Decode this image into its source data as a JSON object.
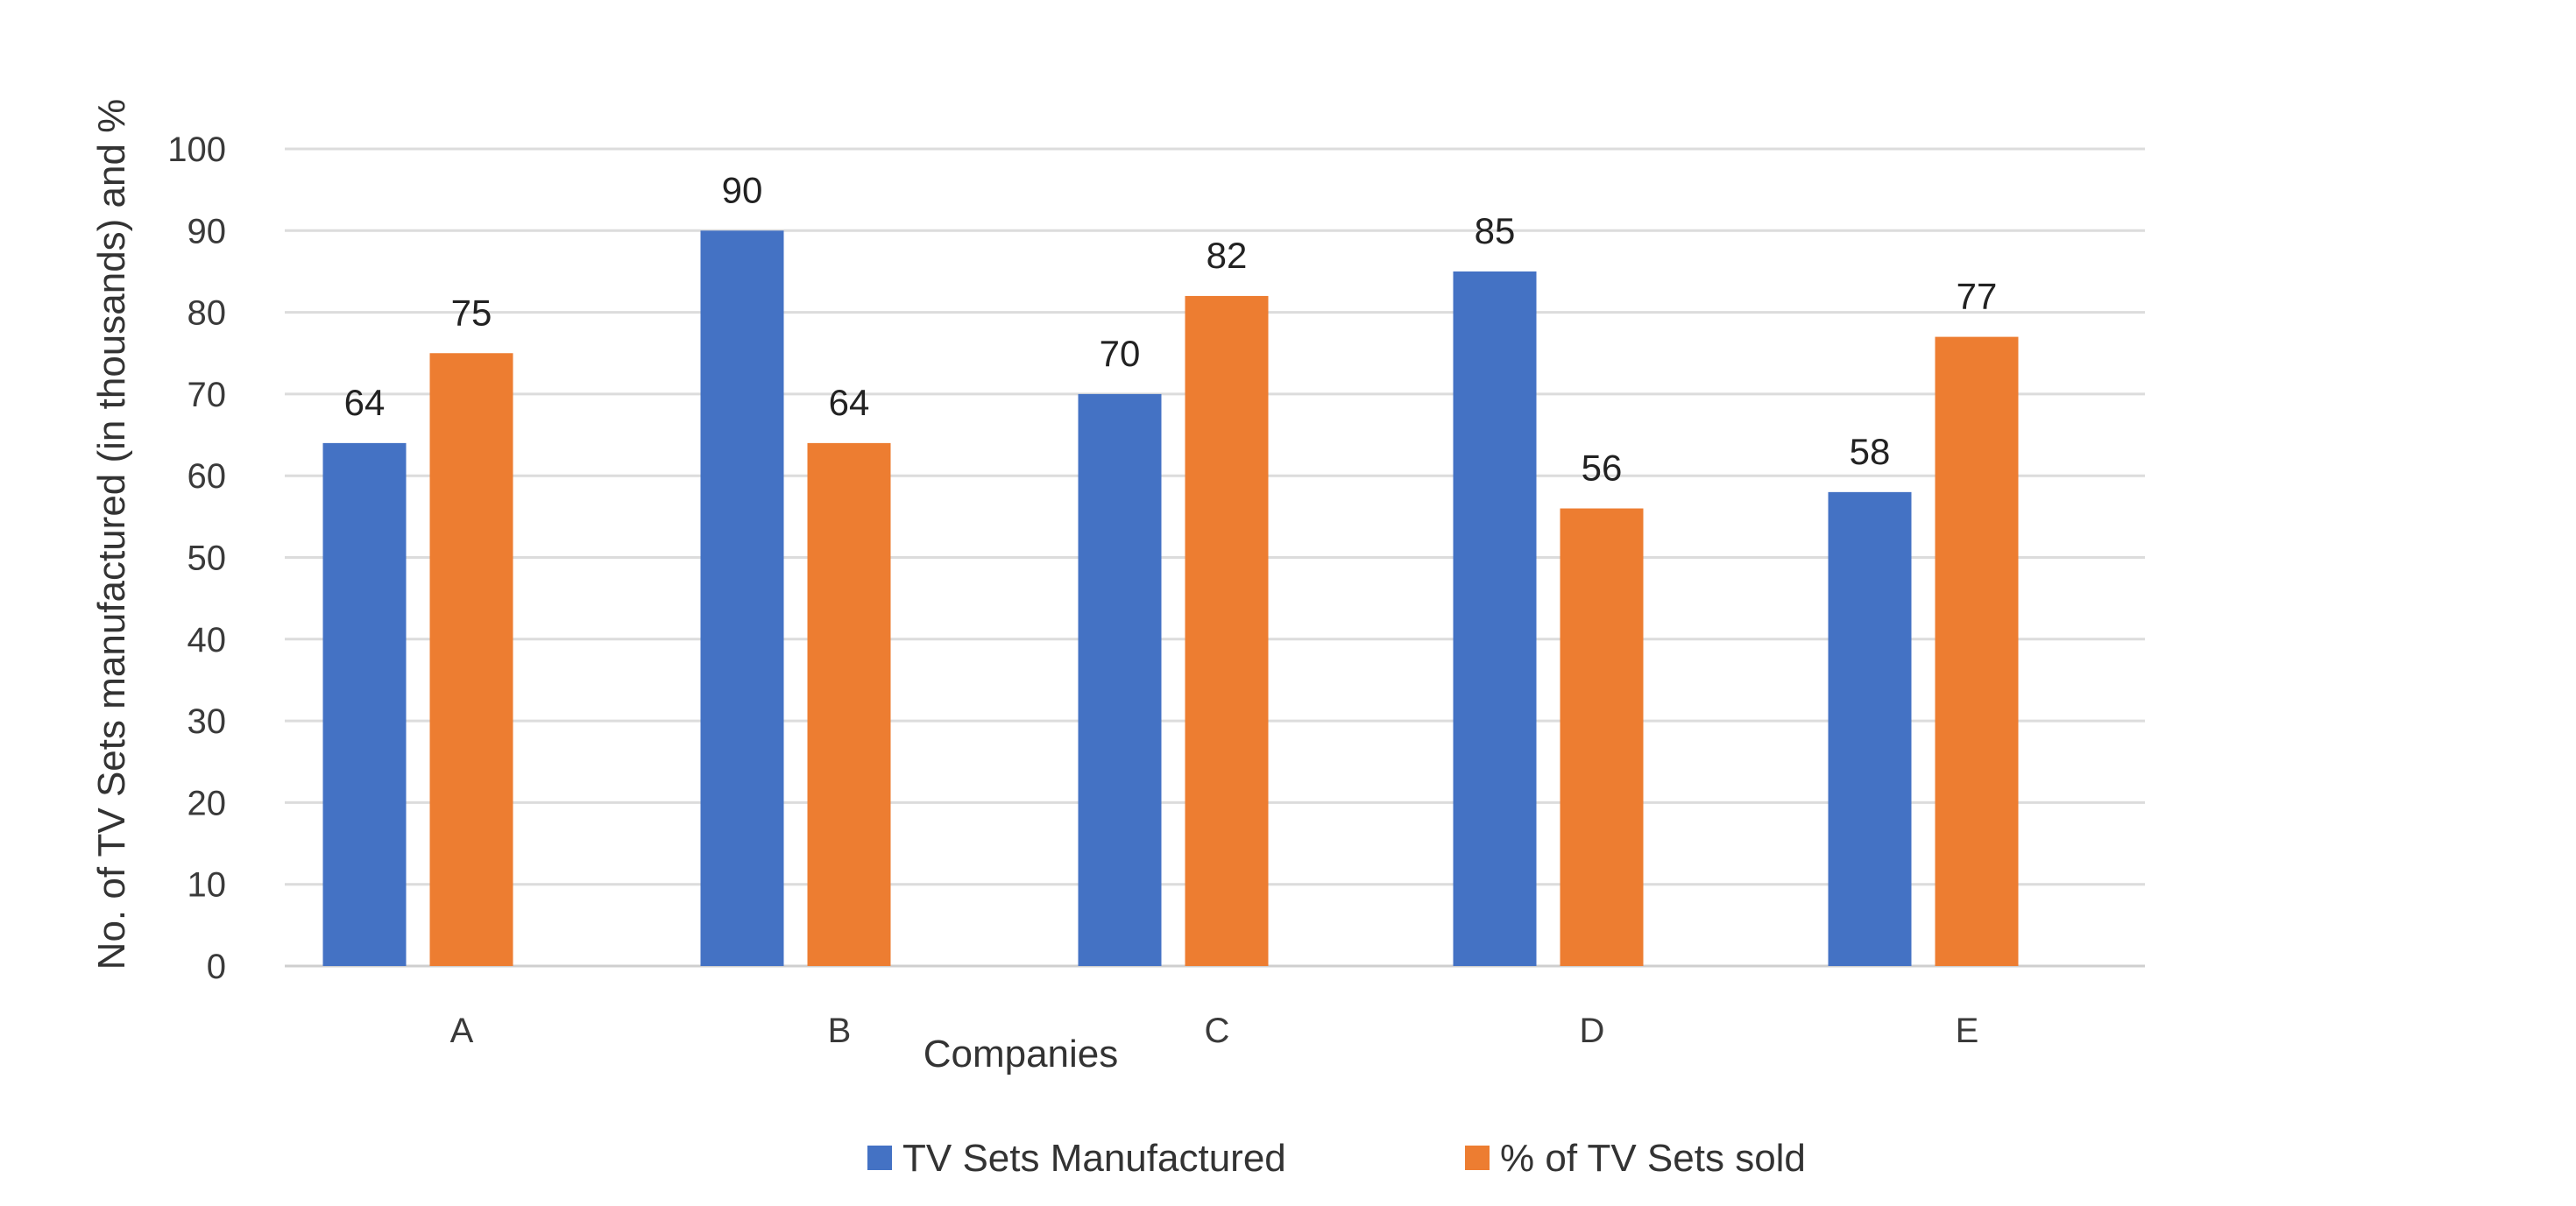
{
  "chart_data": {
    "type": "bar",
    "title": "",
    "xlabel": "Companies",
    "ylabel": "No. of TV Sets manufactured (in thousands) and %",
    "ylim": [
      0,
      100
    ],
    "yticks": [
      0,
      10,
      20,
      30,
      40,
      50,
      60,
      70,
      80,
      90,
      100
    ],
    "grid": true,
    "legend_position": "bottom",
    "categories": [
      "A",
      "B",
      "C",
      "D",
      "E"
    ],
    "series": [
      {
        "name": "TV Sets Manufactured",
        "color": "#4472C4",
        "values": [
          64,
          90,
          70,
          85,
          58
        ]
      },
      {
        "name": "% of TV Sets sold",
        "color": "#ED7D31",
        "values": [
          75,
          64,
          82,
          56,
          77
        ]
      }
    ],
    "data_labels": true
  }
}
